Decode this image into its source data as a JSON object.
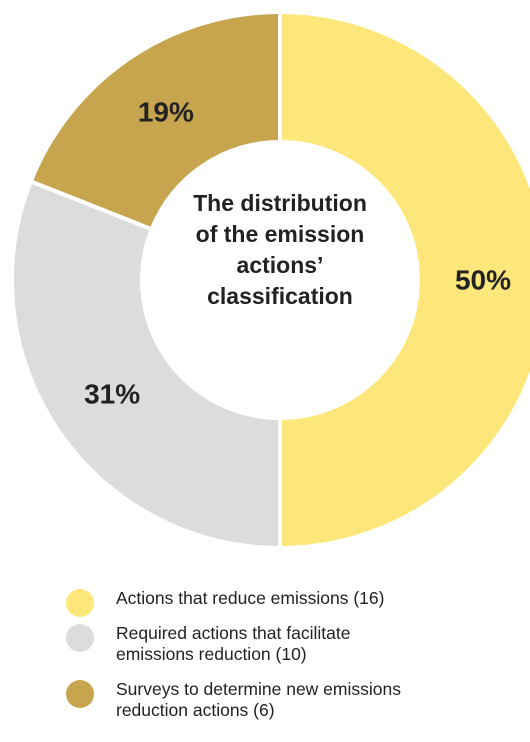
{
  "chart_data": {
    "type": "pie",
    "variant": "donut",
    "title": "The distribution of the emission actions’ classification",
    "title_lines": [
      "The distribution",
      "of the emission",
      "actions’",
      "classification"
    ],
    "slices": [
      {
        "label": "Actions that reduce emissions (16)",
        "label_lines": [
          "Actions that reduce emissions (16)"
        ],
        "count": 16,
        "value": 50,
        "display": "50%",
        "color": "#fde77a"
      },
      {
        "label": "Required actions that facilitate emissions reduction (10)",
        "label_lines": [
          "Required actions that facilitate",
          "emissions reduction (10)"
        ],
        "count": 10,
        "value": 31,
        "display": "31%",
        "color": "#dcdcdc"
      },
      {
        "label": "Surveys to determine new emissions reduction actions (6)",
        "label_lines": [
          "Surveys to determine new emissions",
          "reduction actions (6)"
        ],
        "count": 6,
        "value": 19,
        "display": "19%",
        "color": "#c6a54e"
      }
    ],
    "start": "top",
    "direction": "clockwise",
    "legend_position": "bottom"
  }
}
